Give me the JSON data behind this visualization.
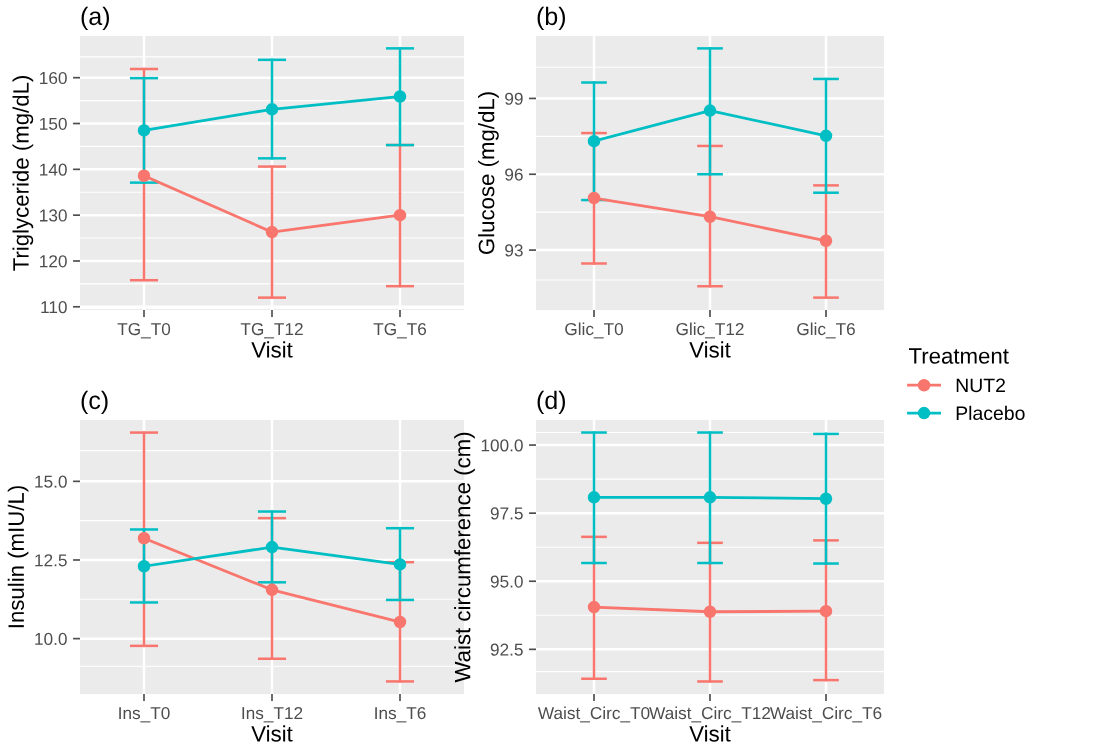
{
  "chart_data": [
    {
      "type": "line",
      "title": "(a)",
      "xlabel": "Visit",
      "ylabel": "Triglyceride (mg/dL)",
      "legend_title": "Treatment",
      "categories": [
        "TG_T0",
        "TG_T12",
        "TG_T6"
      ],
      "ylim": [
        109.3,
        169.1
      ],
      "yticks": [
        110,
        120,
        130,
        140,
        150,
        160
      ],
      "grid": true,
      "marker": "circle",
      "legend": "right",
      "series": [
        {
          "name": "NUT2",
          "color": "#f8766d",
          "values": [
            138.6,
            126.3,
            130.0
          ],
          "errors": [
            [
              115.8,
              161.9
            ],
            [
              112.0,
              140.6
            ],
            [
              114.5,
              145.3
            ]
          ]
        },
        {
          "name": "Placebo",
          "color": "#00bfc4",
          "values": [
            148.5,
            153.1,
            155.9
          ],
          "errors": [
            [
              137.1,
              159.9
            ],
            [
              142.4,
              163.9
            ],
            [
              145.3,
              166.4
            ]
          ]
        }
      ]
    },
    {
      "type": "line",
      "title": "(b)",
      "xlabel": "Visit",
      "ylabel": "Glucose (mg/dL)",
      "categories": [
        "Glic_T0",
        "Glic_T12",
        "Glic_T6"
      ],
      "ylim": [
        90.63,
        101.47
      ],
      "yticks": [
        93,
        96,
        99
      ],
      "grid": true,
      "marker": "circle",
      "legend": false,
      "series": [
        {
          "color": "#f8766d",
          "values": [
            95.06,
            94.32,
            93.37
          ],
          "errors": [
            [
              92.47,
              97.63
            ],
            [
              91.57,
              97.12
            ],
            [
              91.12,
              95.56
            ]
          ]
        },
        {
          "color": "#00bfc4",
          "values": [
            97.31,
            98.52,
            97.52
          ],
          "errors": [
            [
              94.98,
              99.63
            ],
            [
              96.0,
              100.98
            ],
            [
              95.27,
              99.77
            ]
          ]
        }
      ]
    },
    {
      "type": "line",
      "title": "(c)",
      "xlabel": "Visit",
      "ylabel": "Insulin (mIU/L)",
      "categories": [
        "Ins_T0",
        "Ins_T12",
        "Ins_T6"
      ],
      "ylim": [
        8.24,
        16.95
      ],
      "yticks": [
        {
          "value": 10,
          "label": "10.0"
        },
        12.5,
        {
          "value": 15,
          "label": "15.0"
        }
      ],
      "grid": true,
      "marker": "circle",
      "legend": false,
      "series": [
        {
          "color": "#f8766d",
          "values": [
            13.19,
            11.55,
            10.53
          ],
          "errors": [
            [
              9.77,
              16.55
            ],
            [
              9.36,
              13.83
            ],
            [
              8.64,
              12.43
            ]
          ]
        },
        {
          "color": "#00bfc4",
          "values": [
            12.3,
            12.91,
            12.36
          ],
          "errors": [
            [
              11.15,
              13.47
            ],
            [
              11.79,
              14.04
            ],
            [
              11.23,
              13.51
            ]
          ]
        }
      ]
    },
    {
      "type": "line",
      "title": "(d)",
      "xlabel": "Visit",
      "ylabel": "Waist circumference (cm)",
      "categories": [
        "Waist_Circ_T0",
        "Waist_Circ_T12",
        "Waist_Circ_T6"
      ],
      "ylim": [
        90.86,
        100.92
      ],
      "yticks": [
        92.5,
        {
          "value": 95,
          "label": "95.0"
        },
        97.5,
        {
          "value": 100,
          "label": "100.0"
        }
      ],
      "grid": true,
      "marker": "circle",
      "legend": false,
      "series": [
        {
          "color": "#f8766d",
          "values": [
            94.05,
            93.88,
            93.9
          ],
          "errors": [
            [
              91.42,
              96.63
            ],
            [
              91.32,
              96.41
            ],
            [
              91.37,
              96.5
            ]
          ]
        },
        {
          "color": "#00bfc4",
          "values": [
            98.08,
            98.08,
            98.03
          ],
          "errors": [
            [
              95.67,
              100.46
            ],
            [
              95.67,
              100.46
            ],
            [
              95.65,
              100.41
            ]
          ]
        }
      ]
    }
  ]
}
